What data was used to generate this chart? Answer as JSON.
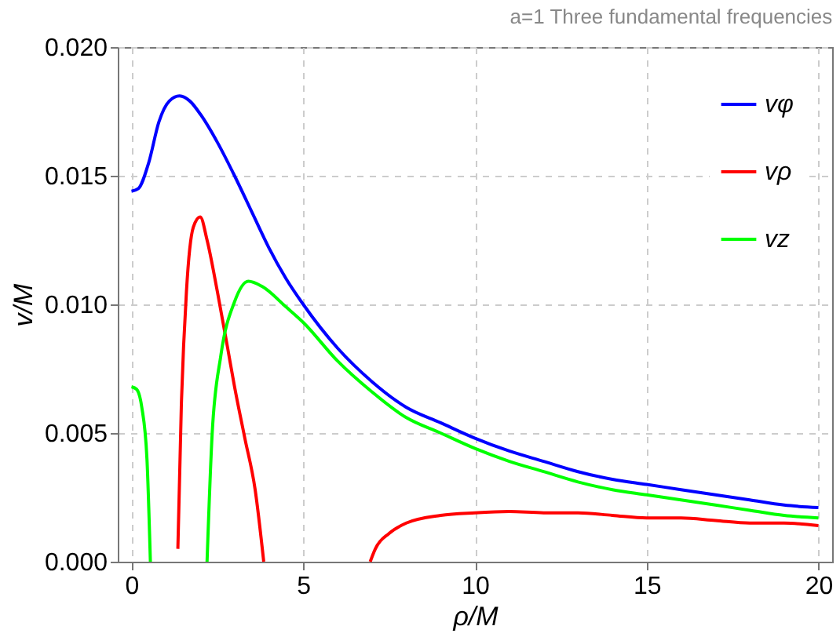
{
  "chart_data": {
    "type": "line",
    "title": "a=1  Three fundamental frequencies",
    "xlabel": "ρ/M",
    "ylabel": "v/M",
    "series": [
      {
        "name": "vφ",
        "color": "#0000ff",
        "x": [
          0,
          0.2,
          0.5,
          0.8,
          1.1,
          1.4,
          1.7,
          2,
          2.5,
          3,
          3.5,
          4,
          4.5,
          5,
          6,
          7,
          8,
          9,
          10,
          11,
          12,
          13,
          14,
          15,
          16,
          17,
          18,
          19,
          20
        ],
        "values": [
          0.0144,
          0.0145,
          0.0155,
          0.0171,
          0.0179,
          0.0181,
          0.0179,
          0.0174,
          0.0163,
          0.015,
          0.0136,
          0.0122,
          0.011,
          0.01,
          0.0083,
          0.007,
          0.006,
          0.0054,
          0.0048,
          0.0043,
          0.0039,
          0.0035,
          0.0032,
          0.003,
          0.0028,
          0.0026,
          0.0024,
          0.0022,
          0.0021
        ]
      },
      {
        "name": "vρ",
        "color": "#ff0000",
        "x": [
          1.35,
          1.45,
          1.6,
          1.8,
          2,
          2.2,
          2.5,
          2.8,
          3,
          3.3,
          3.6,
          3.85,
          5,
          6.95,
          7.1,
          7.5,
          8,
          9,
          10,
          11,
          12,
          13,
          14,
          15,
          16,
          17,
          18,
          19,
          20
        ],
        "values": [
          0.0005,
          0.006,
          0.0105,
          0.013,
          0.0134,
          0.0125,
          0.0105,
          0.0083,
          0.0068,
          0.0048,
          0.0028,
          0.0,
          null,
          0.0,
          0.0005,
          0.0011,
          0.0015,
          0.0018,
          0.0019,
          0.00195,
          0.0019,
          0.0019,
          0.0018,
          0.0017,
          0.0017,
          0.0016,
          0.0015,
          0.0015,
          0.0014
        ]
      },
      {
        "name": "vz",
        "color": "#00ff00",
        "x": [
          0,
          0.15,
          0.3,
          0.45,
          0.55,
          1.2,
          2.2,
          2.35,
          2.6,
          3,
          3.4,
          3.8,
          4.5,
          5,
          6,
          7,
          8,
          9,
          10,
          11,
          12,
          13,
          14,
          15,
          16,
          17,
          18,
          19,
          20
        ],
        "values": [
          0.0068,
          0.0067,
          0.006,
          0.004,
          0.0,
          null,
          0.0,
          0.005,
          0.008,
          0.0101,
          0.0109,
          0.0107,
          0.0099,
          0.0093,
          0.0078,
          0.0066,
          0.0056,
          0.005,
          0.0044,
          0.0039,
          0.0035,
          0.0031,
          0.0028,
          0.0026,
          0.0024,
          0.0022,
          0.002,
          0.0018,
          0.0017
        ]
      }
    ],
    "xlim": [
      -0.4,
      20.4
    ],
    "xticks": [
      0,
      5,
      10,
      15,
      20
    ],
    "ylim": [
      0,
      0.02
    ],
    "yticks": [
      {
        "value": 0,
        "label": "0.000"
      },
      {
        "value": 0.005,
        "label": "0.005"
      },
      {
        "value": 0.01,
        "label": "0.010"
      },
      {
        "value": 0.015,
        "label": "0.015"
      },
      {
        "value": 0.02,
        "label": "0.020"
      }
    ],
    "grid": true,
    "legend": "top right",
    "line_style": "solid"
  }
}
